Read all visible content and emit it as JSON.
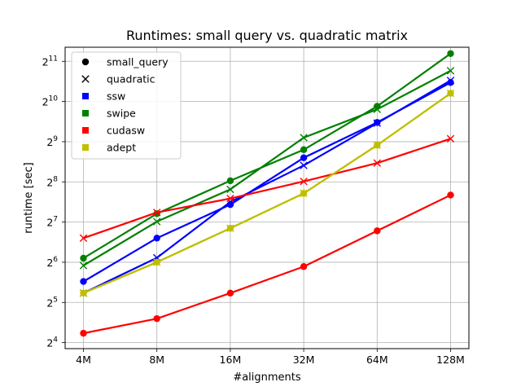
{
  "chart_data": {
    "type": "line",
    "title": "Runtimes: small query vs. quadratic matrix",
    "xlabel": "#alignments",
    "ylabel": "runtime [sec]",
    "yscale": "log2",
    "grid": true,
    "legend_position": "top-left",
    "categories": [
      "4M",
      "8M",
      "16M",
      "32M",
      "64M",
      "128M"
    ],
    "ylim_log2": [
      3.85,
      11.35
    ],
    "yticks": [
      {
        "base": "2",
        "exp": "4",
        "log2": 4
      },
      {
        "base": "2",
        "exp": "5",
        "log2": 5
      },
      {
        "base": "2",
        "exp": "6",
        "log2": 6
      },
      {
        "base": "2",
        "exp": "7",
        "log2": 7
      },
      {
        "base": "2",
        "exp": "8",
        "log2": 8
      },
      {
        "base": "2",
        "exp": "9",
        "log2": 9
      },
      {
        "base": "2",
        "exp": "10",
        "log2": 10
      },
      {
        "base": "2",
        "exp": "11",
        "log2": 11
      }
    ],
    "legend": [
      {
        "label": "small_query",
        "marker": "circle",
        "color": "#000000"
      },
      {
        "label": "quadratic",
        "marker": "x",
        "color": "#000000"
      },
      {
        "label": "ssw",
        "marker": "square",
        "color": "#0000ff"
      },
      {
        "label": "swipe",
        "marker": "square",
        "color": "#008000"
      },
      {
        "label": "cudasw",
        "marker": "square",
        "color": "#ff0000"
      },
      {
        "label": "adept",
        "marker": "square",
        "color": "#bfbf00"
      }
    ],
    "series": [
      {
        "tool": "ssw",
        "variant": "small_query",
        "color": "#0000ff",
        "marker": "circle",
        "values": [
          45.9,
          97.0,
          173,
          388,
          713,
          1420
        ]
      },
      {
        "tool": "ssw",
        "variant": "quadratic",
        "color": "#0000ff",
        "marker": "x",
        "values": [
          37.6,
          69.1,
          181,
          340,
          705,
          1470
        ]
      },
      {
        "tool": "swipe",
        "variant": "small_query",
        "color": "#008000",
        "marker": "circle",
        "values": [
          68.6,
          148,
          261,
          446,
          943,
          2340
        ]
      },
      {
        "tool": "swipe",
        "variant": "quadratic",
        "color": "#008000",
        "marker": "x",
        "values": [
          60.5,
          129,
          225,
          549,
          895,
          1740
        ]
      },
      {
        "tool": "cudasw",
        "variant": "small_query",
        "color": "#ff0000",
        "marker": "circle",
        "values": [
          18.8,
          24.2,
          37.6,
          59.4,
          110,
          204
        ]
      },
      {
        "tool": "cudasw",
        "variant": "quadratic",
        "color": "#ff0000",
        "marker": "x",
        "values": [
          97.0,
          151,
          192,
          258,
          354,
          539
        ]
      },
      {
        "tool": "adept",
        "variant": "small_query",
        "color": "#bfbf00",
        "marker": "circle",
        "values": [
          37.6,
          64.0,
          115,
          210,
          482,
          1180
        ]
      },
      {
        "tool": "adept",
        "variant": "quadratic",
        "color": "#bfbf00",
        "marker": "x",
        "values": [
          37.6,
          64.0,
          115,
          210,
          482,
          1180
        ]
      }
    ]
  }
}
